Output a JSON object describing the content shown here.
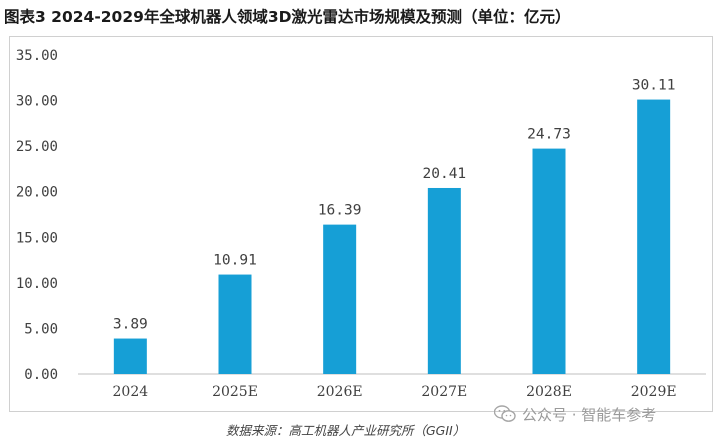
{
  "title": "图表3 2024-2029年全球机器人领域3D激光雷达市场规模及预测（单位：亿元）",
  "source": "数据来源：高工机器人产业研究所（GGII）",
  "watermark": "公众号 · 智能车参考",
  "watermark_icon": "wechat-icon",
  "colors": {
    "bar": "#169fd6",
    "axis": "#bfbfbf",
    "text": "#404040"
  },
  "chart_data": {
    "type": "bar",
    "title": "图表3 2024-2029年全球机器人领域3D激光雷达市场规模及预测（单位：亿元）",
    "xlabel": "",
    "ylabel": "",
    "categories": [
      "2024",
      "2025E",
      "2026E",
      "2027E",
      "2028E",
      "2029E"
    ],
    "values": [
      3.89,
      10.91,
      16.39,
      20.41,
      24.73,
      30.11
    ],
    "value_labels": [
      "3.89",
      "10.91",
      "16.39",
      "20.41",
      "24.73",
      "30.11"
    ],
    "ylim": [
      0,
      35
    ],
    "yticks": [
      "0.00",
      "5.00",
      "10.00",
      "15.00",
      "20.00",
      "25.00",
      "30.00",
      "35.00"
    ],
    "grid": false,
    "legend": "none"
  }
}
